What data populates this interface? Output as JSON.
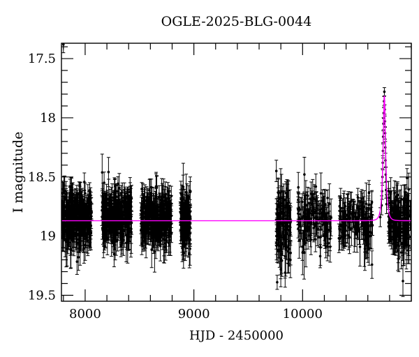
{
  "title": "OGLE-2025-BLG-0044",
  "colors": {
    "background": "#ffffff",
    "frame": "#000000",
    "data_points": "#000000",
    "model_curve": "#ff00ff"
  },
  "chart_data": {
    "type": "scatter",
    "title": "OGLE-2025-BLG-0044",
    "xlabel": "HJD - 2450000",
    "ylabel": "I magnitude",
    "x_range": [
      7782,
      11000
    ],
    "y_range": [
      17.37,
      19.55
    ],
    "y_axis_inverted": true,
    "grid": false,
    "legend": "none",
    "x_ticks": {
      "major": [
        {
          "v": 8000,
          "label": "8000"
        },
        {
          "v": 9000,
          "label": "9000"
        },
        {
          "v": 10000,
          "label": "10000"
        }
      ],
      "minor_step": 200
    },
    "y_ticks": {
      "major": [
        {
          "v": 17.5,
          "label": "17.5"
        },
        {
          "v": 18.0,
          "label": "18"
        },
        {
          "v": 18.5,
          "label": "18.5"
        },
        {
          "v": 19.0,
          "label": "19"
        },
        {
          "v": 19.5,
          "label": "19.5"
        }
      ],
      "minor_step": 0.1
    },
    "model_curve": {
      "kind": "paczynski-microlensing",
      "t0": 10752,
      "tE": 22,
      "u0": 0.4,
      "baseline_mag": 18.87,
      "peak_mag": 17.81,
      "color_key": "model_curve"
    },
    "random_seed": 1337,
    "seasonal_clusters": [
      {
        "name": "season-2017",
        "t_start": 7788,
        "t_end": 8062,
        "n_points": 330,
        "mean_mag": 18.845,
        "mag_sigma": 0.105,
        "err_base": 0.055,
        "err_scale": 0.045
      },
      {
        "name": "season-2018",
        "t_start": 8152,
        "t_end": 8428,
        "n_points": 300,
        "mean_mag": 18.845,
        "mag_sigma": 0.105,
        "err_base": 0.055,
        "err_scale": 0.045
      },
      {
        "name": "season-2019",
        "t_start": 8512,
        "t_end": 8795,
        "n_points": 270,
        "mean_mag": 18.85,
        "mag_sigma": 0.11,
        "err_base": 0.055,
        "err_scale": 0.045
      },
      {
        "name": "season-2020",
        "t_start": 8876,
        "t_end": 8968,
        "n_points": 120,
        "mean_mag": 18.85,
        "mag_sigma": 0.115,
        "err_base": 0.055,
        "err_scale": 0.05
      },
      {
        "name": "season-2022",
        "t_start": 9758,
        "t_end": 9892,
        "n_points": 110,
        "mean_mag": 18.92,
        "mag_sigma": 0.175,
        "err_base": 0.065,
        "err_scale": 0.06
      },
      {
        "name": "season-2023",
        "t_start": 9958,
        "t_end": 10262,
        "n_points": 130,
        "mean_mag": 18.86,
        "mag_sigma": 0.12,
        "err_base": 0.06,
        "err_scale": 0.055
      },
      {
        "name": "season-2024",
        "t_start": 10332,
        "t_end": 10648,
        "n_points": 140,
        "mean_mag": 18.855,
        "mag_sigma": 0.115,
        "err_base": 0.06,
        "err_scale": 0.05
      },
      {
        "name": "season-2025-post-peak",
        "t_start": 10788,
        "t_end": 10996,
        "n_points": 150,
        "mean_mag": 18.87,
        "mag_sigma": 0.125,
        "err_base": 0.06,
        "err_scale": 0.055
      }
    ],
    "event_points": [
      [
        10714,
        18.84,
        0.08
      ],
      [
        10727,
        18.74,
        0.08
      ],
      [
        10731,
        18.62,
        0.07
      ],
      [
        10734,
        18.5,
        0.07
      ],
      [
        10737,
        18.38,
        0.06
      ],
      [
        10739,
        18.28,
        0.06
      ],
      [
        10741,
        18.16,
        0.05
      ],
      [
        10744,
        18.05,
        0.05
      ],
      [
        10746,
        17.96,
        0.045
      ],
      [
        10749,
        17.86,
        0.04
      ],
      [
        10752,
        17.78,
        0.035
      ],
      [
        10755,
        17.93,
        0.04
      ],
      [
        10757,
        18.03,
        0.045
      ],
      [
        10759,
        18.13,
        0.05
      ],
      [
        10761,
        18.25,
        0.05
      ],
      [
        10763,
        18.36,
        0.06
      ],
      [
        10765,
        18.48,
        0.065
      ],
      [
        10768,
        18.61,
        0.07
      ],
      [
        10772,
        18.73,
        0.08
      ]
    ],
    "outlier_points": [
      [
        7800,
        17.38,
        0.07
      ],
      [
        9766,
        19.39,
        0.06
      ],
      [
        10884,
        19.19,
        0.11
      ],
      [
        10923,
        19.38,
        0.13
      ]
    ]
  }
}
